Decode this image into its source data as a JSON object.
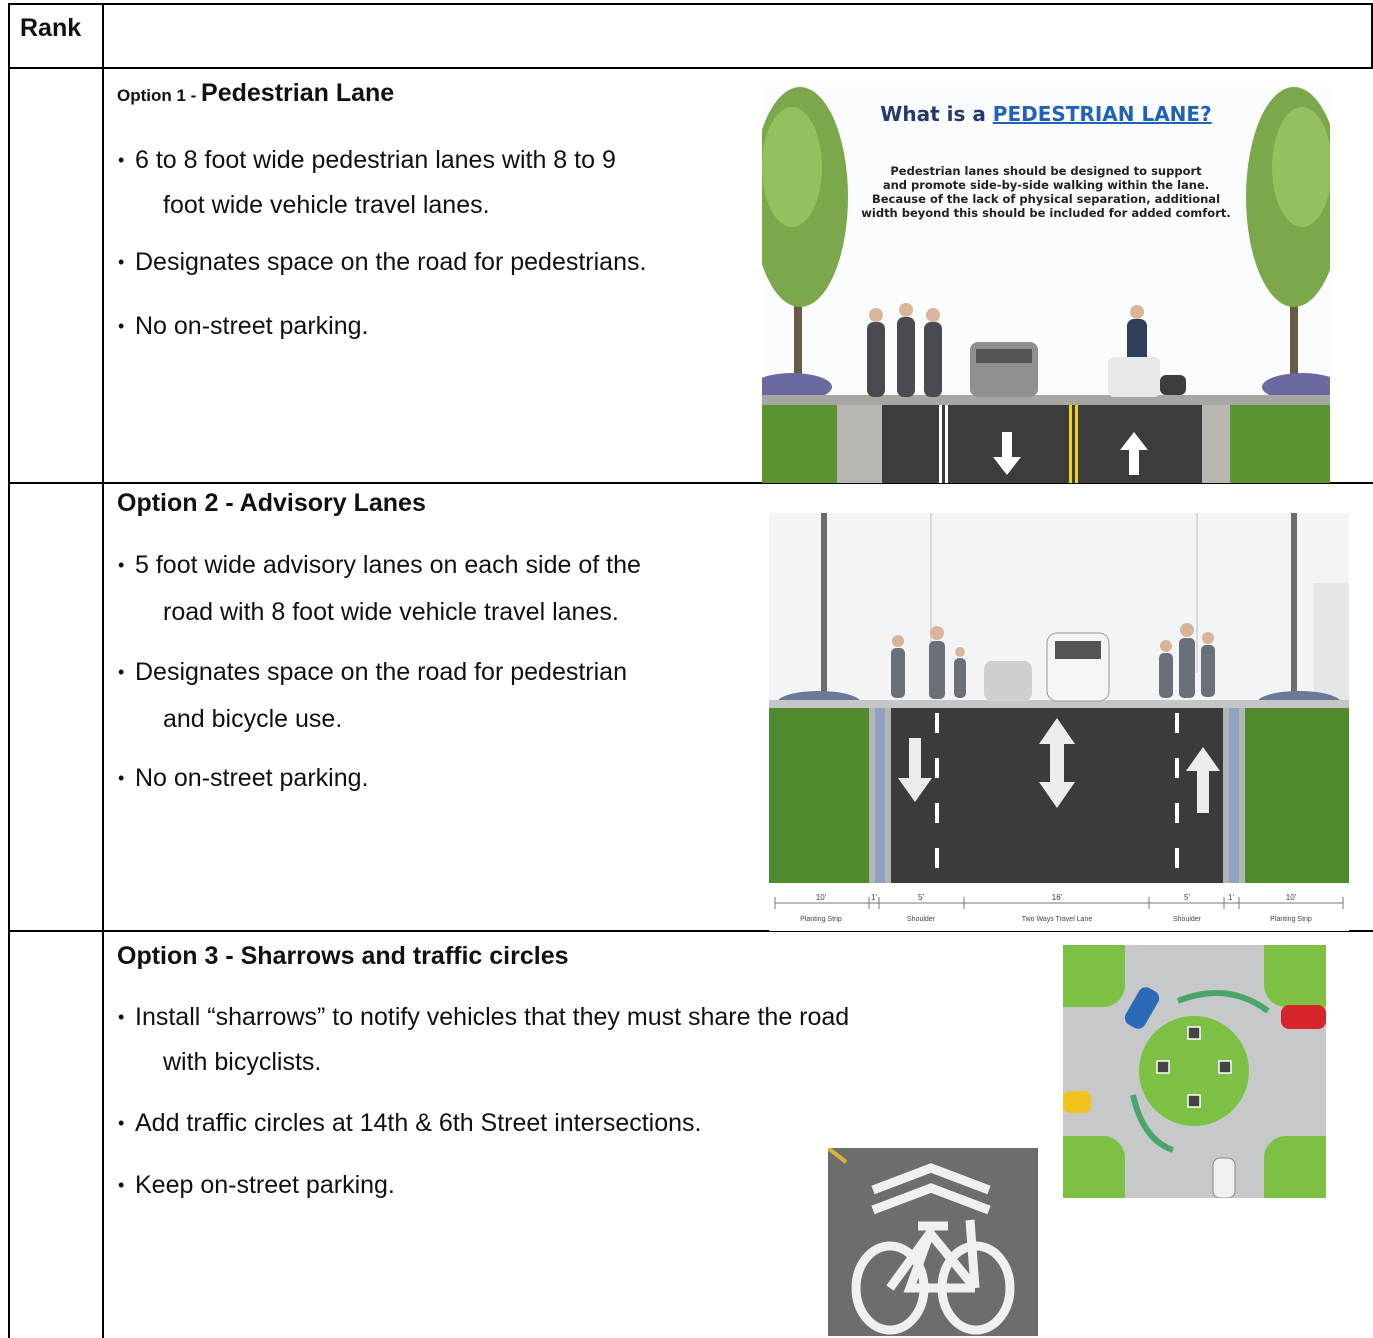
{
  "header": {
    "rank": "Rank"
  },
  "rows": [
    {
      "option": "Option 1 - ",
      "title": "Pedestrian Lane",
      "bullets": [
        [
          "6 to 8 foot wide pedestrian lanes with 8 to 9",
          "foot wide vehicle travel lanes."
        ],
        [
          "Designates space on the road for pedestrians."
        ],
        [
          "No on-street parking."
        ]
      ],
      "image": {
        "heading_prefix": "What is a ",
        "heading_highlight": "PEDESTRIAN LANE?",
        "text_lines": [
          "Pedestrian lanes should be designed to support",
          "and promote side-by-side walking within the lane.",
          "Because of the lack of physical separation, additional",
          "width beyond this should be included for added comfort."
        ]
      }
    },
    {
      "title": "Option 2 - Advisory Lanes",
      "bullets": [
        [
          "5 foot wide advisory lanes on each side of the",
          "road with 8 foot wide vehicle travel lanes."
        ],
        [
          "Designates space on the road for pedestrian",
          "and bicycle use."
        ],
        [
          "No on-street parking."
        ]
      ],
      "image": {
        "dimensions": [
          "10'",
          "1'",
          "5'",
          "16'",
          "5'",
          "1'",
          "10'"
        ],
        "zones": [
          "Planting Strip",
          "Shoulder",
          "Two Ways Travel Lane",
          "Shoulder",
          "Planting Strip"
        ]
      }
    },
    {
      "title": "Option 3 - Sharrows and traffic circles",
      "bullets": [
        [
          "Install “sharrows” to notify vehicles that they must share the road",
          "with bicyclists."
        ],
        [
          "Add traffic circles at 14th & 6th Street intersections."
        ],
        [
          "Keep on-street parking."
        ]
      ]
    }
  ]
}
